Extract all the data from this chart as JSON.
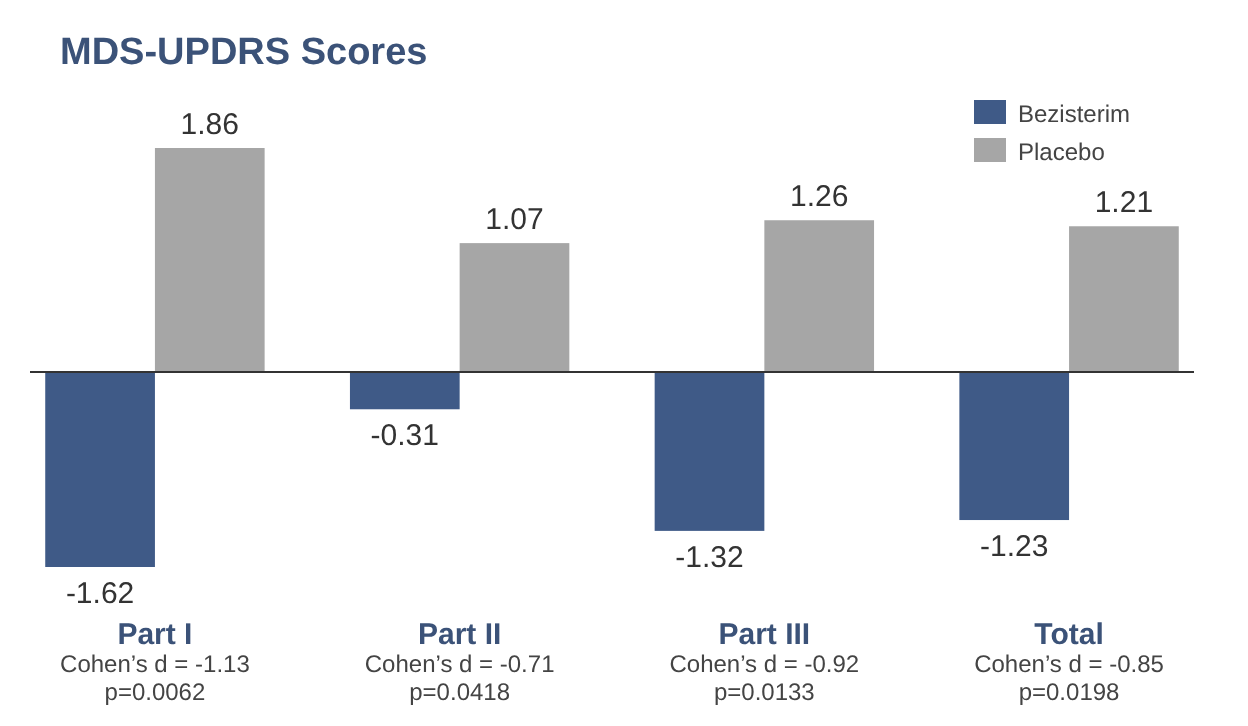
{
  "chart_data": {
    "type": "bar",
    "title": "MDS-UPDRS Scores",
    "categories": [
      "Part I",
      "Part II",
      "Part III",
      "Total"
    ],
    "series": [
      {
        "name": "Bezisterim",
        "color": "#3f5a87",
        "values": [
          -1.62,
          -0.31,
          -1.32,
          -1.23
        ]
      },
      {
        "name": "Placebo",
        "color": "#a6a6a6",
        "values": [
          1.86,
          1.07,
          1.26,
          1.21
        ]
      }
    ],
    "data_labels": true,
    "legend": "top right",
    "annotations": [
      "Cohen’s d = -1.13\np=0.0062",
      "Cohen’s d = -0.71\np=0.0418",
      "Cohen’s d = -0.92\np=0.0133",
      "Cohen’s d = -0.85\np=0.0198"
    ]
  }
}
